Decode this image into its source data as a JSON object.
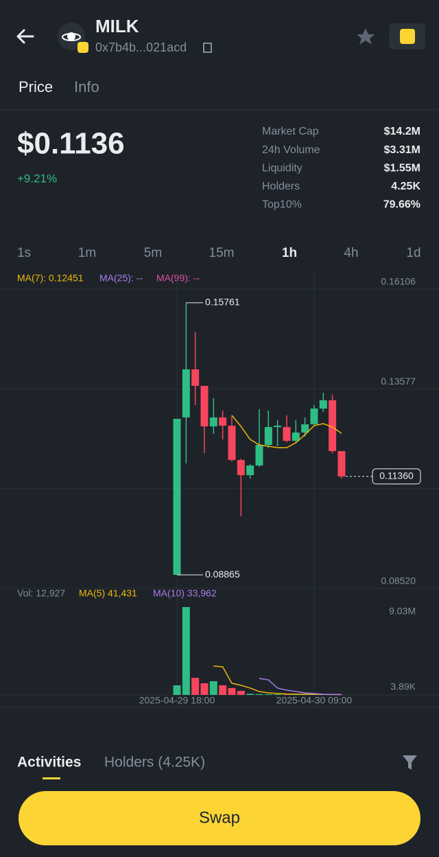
{
  "header": {
    "token": "MILK",
    "address": "0x7b4b...021acd"
  },
  "tabs": [
    "Price",
    "Info"
  ],
  "price": {
    "value": "$0.1136",
    "change": "+9.21%"
  },
  "stats": [
    {
      "label": "Market Cap",
      "value": "$14.2M"
    },
    {
      "label": "24h Volume",
      "value": "$3.31M"
    },
    {
      "label": "Liquidity",
      "value": "$1.55M"
    },
    {
      "label": "Holders",
      "value": "4.25K"
    },
    {
      "label": "Top10%",
      "value": "79.66%"
    }
  ],
  "intervals": {
    "items": [
      "1s",
      "1m",
      "5m",
      "15m",
      "1h",
      "4h",
      "1d"
    ],
    "active": 4
  },
  "chart": {
    "type": "candlestick",
    "legend": [
      {
        "text": "MA(7): 0.12451",
        "color": "#f0b90b"
      },
      {
        "text": "MA(25): --",
        "color": "#a77ce8"
      },
      {
        "text": "MA(99): --",
        "color": "#e24fa8"
      }
    ],
    "up_color": "#2ebd85",
    "down_color": "#f6465d",
    "categories": [
      "2025-04-29 18:00",
      null,
      null,
      null,
      null,
      null,
      null,
      null,
      null,
      null,
      null,
      null,
      null,
      null,
      null,
      "2025-04-30 09:00",
      null,
      null,
      null
    ],
    "ylim": [
      0.0852,
      0.16106
    ],
    "yticks": [
      {
        "value": 0.0852,
        "label": "0.08520"
      },
      0.11049,
      0.13577,
      0.16106
    ],
    "open": [
      0.08868,
      0.12854,
      0.14072,
      0.13654,
      0.12628,
      0.12854,
      0.12645,
      0.11775,
      0.11392,
      0.11636,
      0.12158,
      0.1261,
      0.1261,
      0.12262,
      0.12471,
      0.1268,
      0.1308,
      0.13289,
      0.12001
    ],
    "close": [
      0.12819,
      0.14072,
      0.13654,
      0.12628,
      0.12854,
      0.12645,
      0.11775,
      0.11392,
      0.11636,
      0.12158,
      0.1261,
      0.12645,
      0.12262,
      0.12471,
      0.1268,
      0.1308,
      0.13289,
      0.12001,
      0.1136
    ],
    "high": [
      0.12819,
      0.15761,
      0.15012,
      0.13654,
      0.13341,
      0.13028,
      0.12906,
      0.1181,
      0.1167,
      0.13063,
      0.13028,
      0.12784,
      0.12906,
      0.12784,
      0.12854,
      0.13167,
      0.1348,
      0.13428,
      0.12001
    ],
    "low": [
      0.08865,
      0.11688,
      0.13167,
      0.11949,
      0.12436,
      0.12297,
      0.1174,
      0.10348,
      0.11305,
      0.11601,
      0.12088,
      0.12123,
      0.12227,
      0.1221,
      0.12367,
      0.12645,
      0.12993,
      0.11949,
      0.11305
    ],
    "ma": [
      {
        "name": "MA(7)",
        "color": "#f0b90b",
        "values": [
          null,
          null,
          null,
          null,
          null,
          null,
          0.12906,
          0.12628,
          0.12297,
          0.12158,
          0.12123,
          0.12088,
          0.12088,
          0.1221,
          0.12419,
          0.12645,
          0.12697,
          0.1261,
          0.12451
        ]
      }
    ],
    "annotations": [
      {
        "value": 0.15761,
        "label": "0.15761"
      },
      {
        "value": 0.08865,
        "label": "0.08865"
      }
    ],
    "current": {
      "value": 0.1136,
      "label": "0.11360"
    },
    "volume": {
      "legend": [
        {
          "text": "Vol: 12,927",
          "color": "#848e9c"
        },
        {
          "text": "MA(5) 41,431",
          "color": "#f0b90b"
        },
        {
          "text": "MA(10) 33,962",
          "color": "#a77ce8"
        }
      ],
      "ylim": [
        0,
        9030000
      ],
      "yticks": [
        {
          "value": 3890,
          "label": "3.89K"
        },
        {
          "value": 9030000,
          "label": "9.03M"
        }
      ],
      "values": [
        990000,
        9030000,
        1760000,
        1200000,
        1410000,
        990000,
        710000,
        420000,
        120000,
        90000,
        70000,
        60000,
        50000,
        40000,
        30000,
        20000,
        15000,
        10000,
        12927
      ],
      "ma": [
        {
          "name": "MA(5)",
          "color": "#f0b90b",
          "values": [
            null,
            null,
            null,
            null,
            2960000,
            2890000,
            1200000,
            990000,
            710000,
            350000,
            210000,
            150000,
            100000,
            80000,
            70000,
            60000,
            50000,
            45000,
            41431
          ]
        },
        {
          "name": "MA(10)",
          "color": "#a77ce8",
          "values": [
            null,
            null,
            null,
            null,
            null,
            null,
            null,
            null,
            null,
            1690000,
            1550000,
            710000,
            490000,
            350000,
            210000,
            140000,
            70000,
            50000,
            33962
          ]
        }
      ]
    }
  },
  "bottom_tabs": [
    "Activities",
    "Holders (4.25K)"
  ],
  "button": "Swap"
}
